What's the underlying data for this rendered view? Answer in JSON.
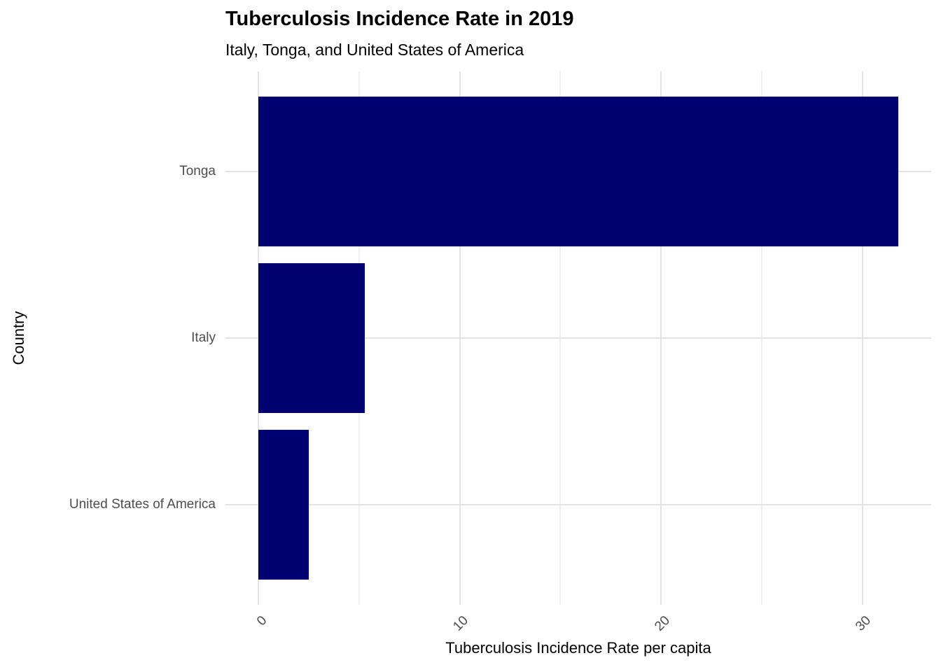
{
  "chart_data": {
    "type": "bar",
    "orientation": "horizontal",
    "title": "Tuberculosis Incidence Rate in 2019",
    "subtitle": "Italy, Tonga, and United States of America",
    "xlabel": "Tuberculosis Incidence Rate per capita",
    "ylabel": "Country",
    "categories": [
      "Tonga",
      "Italy",
      "United States of America"
    ],
    "values": [
      31.8,
      5.3,
      2.5
    ],
    "xlim": [
      0,
      33.5
    ],
    "xticks": [
      0,
      10,
      20,
      30
    ],
    "xticks_minor": [
      5,
      15,
      25
    ],
    "grid": true,
    "legend": false,
    "colors": {
      "bar": "#000070",
      "grid_major": "#e3e3e3",
      "grid_minor": "#efefef",
      "tick_label": "#4d4d4d",
      "text": "#000000",
      "background": "#ffffff"
    }
  }
}
